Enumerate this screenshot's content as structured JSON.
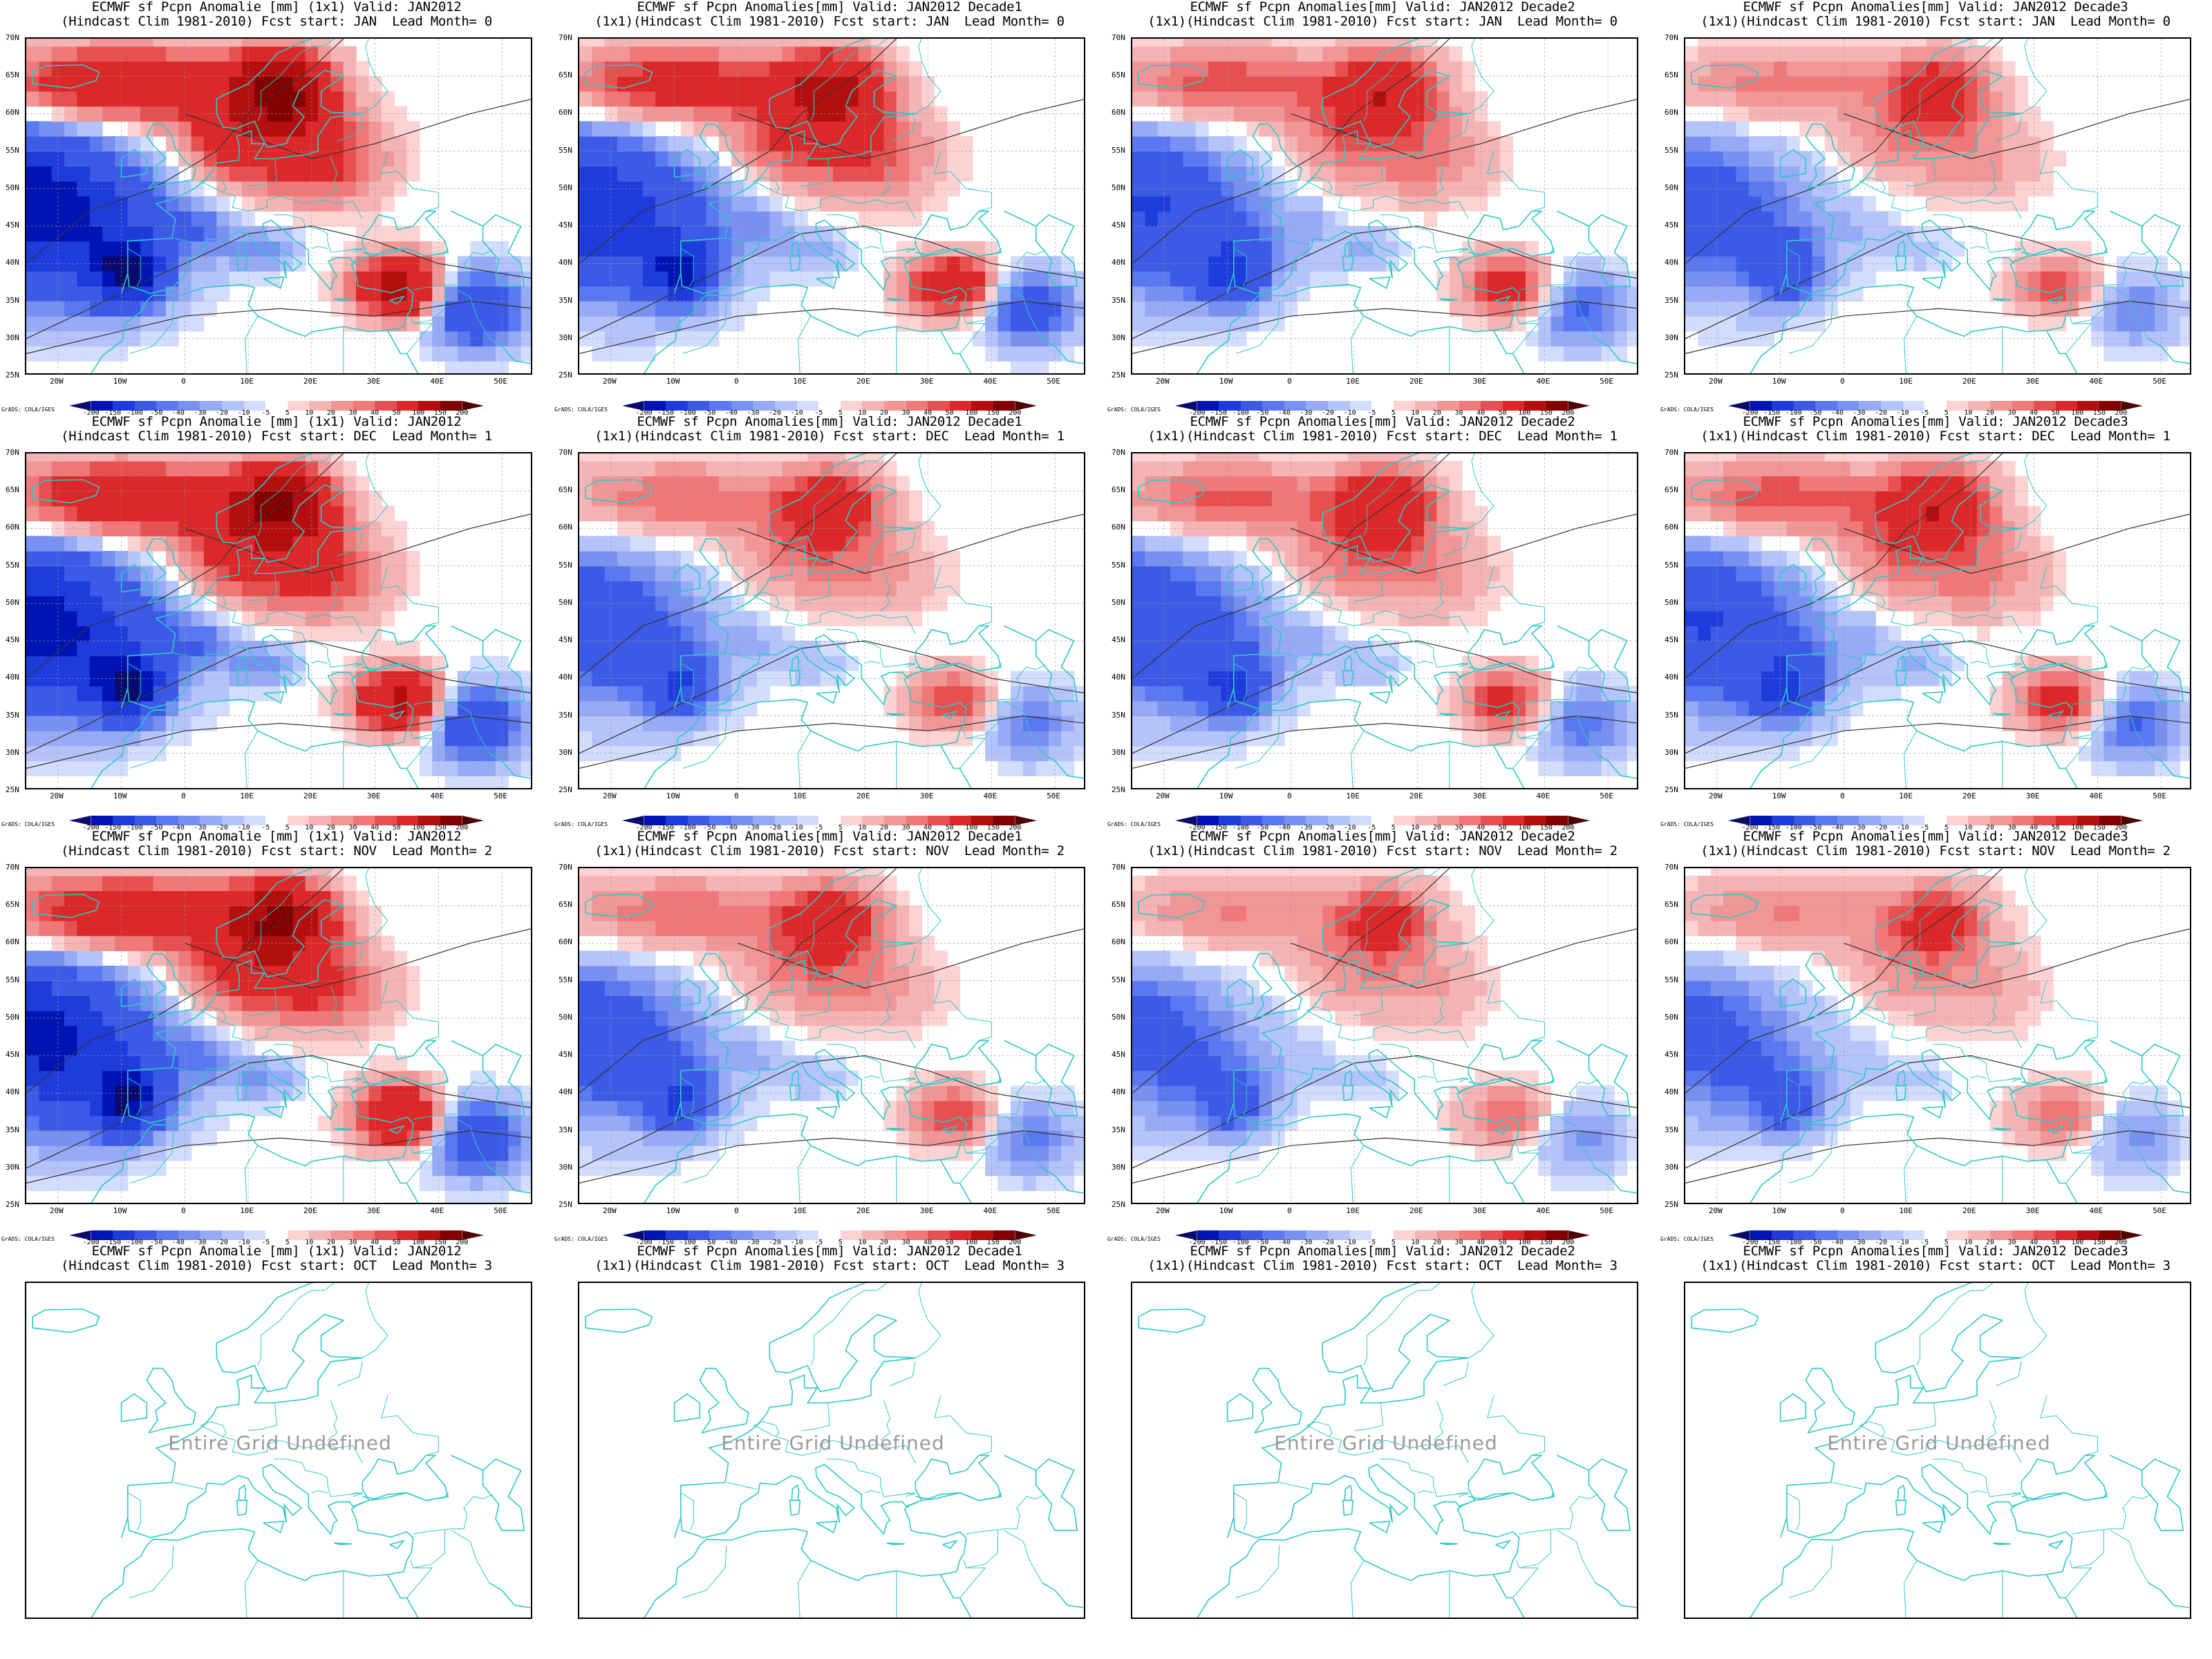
{
  "panels": [
    {
      "title": "ECMWF sf Pcpn Anomalie [mm] (1x1) Valid: JAN2012\n(Hindcast Clim 1981-2010) Fcst start: JAN  Lead Month= 0",
      "defined": true,
      "strength": 1.0
    },
    {
      "title": "ECMWF sf Pcpn Anomalies[mm] Valid: JAN2012 Decade1\n(1x1)(Hindcast Clim 1981-2010) Fcst start: JAN  Lead Month= 0",
      "defined": true,
      "strength": 0.75
    },
    {
      "title": "ECMWF sf Pcpn Anomalies[mm] Valid: JAN2012 Decade2\n(1x1)(Hindcast Clim 1981-2010) Fcst start: JAN  Lead Month= 0",
      "defined": true,
      "strength": 0.55
    },
    {
      "title": "ECMWF sf Pcpn Anomalies[mm] Valid: JAN2012 Decade3\n(1x1)(Hindcast Clim 1981-2010) Fcst start: JAN  Lead Month= 0",
      "defined": true,
      "strength": 0.4
    },
    {
      "title": "ECMWF sf Pcpn Anomalie [mm] (1x1) Valid: JAN2012\n(Hindcast Clim 1981-2010) Fcst start: DEC  Lead Month= 1",
      "defined": true,
      "strength": 0.95
    },
    {
      "title": "ECMWF sf Pcpn Anomalies[mm] Valid: JAN2012 Decade1\n(1x1)(Hindcast Clim 1981-2010) Fcst start: DEC  Lead Month= 1",
      "defined": true,
      "strength": 0.45
    },
    {
      "title": "ECMWF sf Pcpn Anomalies[mm] Valid: JAN2012 Decade2\n(1x1)(Hindcast Clim 1981-2010) Fcst start: DEC  Lead Month= 1",
      "defined": true,
      "strength": 0.5
    },
    {
      "title": "ECMWF sf Pcpn Anomalies[mm] Valid: JAN2012 Decade3\n(1x1)(Hindcast Clim 1981-2010) Fcst start: DEC  Lead Month= 1",
      "defined": true,
      "strength": 0.55
    },
    {
      "title": "ECMWF sf Pcpn Anomalie [mm] (1x1) Valid: JAN2012\n(Hindcast Clim 1981-2010) Fcst start: NOV  Lead Month= 2",
      "defined": true,
      "strength": 0.9
    },
    {
      "title": "ECMWF sf Pcpn Anomalies[mm] Valid: JAN2012 Decade1\n(1x1)(Hindcast Clim 1981-2010) Fcst start: NOV  Lead Month= 2",
      "defined": true,
      "strength": 0.45
    },
    {
      "title": "ECMWF sf Pcpn Anomalies[mm] Valid: JAN2012 Decade2\n(1x1)(Hindcast Clim 1981-2010) Fcst start: NOV  Lead Month= 2",
      "defined": true,
      "strength": 0.35
    },
    {
      "title": "ECMWF sf Pcpn Anomalies[mm] Valid: JAN2012 Decade3\n(1x1)(Hindcast Clim 1981-2010) Fcst start: NOV  Lead Month= 2",
      "defined": true,
      "strength": 0.35
    },
    {
      "title": "ECMWF sf Pcpn Anomalie [mm] (1x1) Valid: JAN2012\n(Hindcast Clim 1981-2010) Fcst start: OCT  Lead Month= 3",
      "defined": false
    },
    {
      "title": "ECMWF sf Pcpn Anomalies[mm] Valid: JAN2012 Decade1\n(1x1)(Hindcast Clim 1981-2010) Fcst start: OCT  Lead Month= 3",
      "defined": false
    },
    {
      "title": "ECMWF sf Pcpn Anomalies[mm] Valid: JAN2012 Decade2\n(1x1)(Hindcast Clim 1981-2010) Fcst start: OCT  Lead Month= 3",
      "defined": false
    },
    {
      "title": "ECMWF sf Pcpn Anomalies[mm] Valid: JAN2012 Decade3\n(1x1)(Hindcast Clim 1981-2010) Fcst start: OCT  Lead Month= 3",
      "defined": false
    }
  ],
  "lat_labels": [
    "70N",
    "65N",
    "60N",
    "55N",
    "50N",
    "45N",
    "40N",
    "35N",
    "30N",
    "25N"
  ],
  "lon_labels": [
    "20W",
    "10W",
    "0",
    "10E",
    "20E",
    "30E",
    "40E",
    "50E"
  ],
  "colorbar": {
    "labels": [
      "-200",
      "-150",
      "-100",
      "-50",
      "-40",
      "-30",
      "-20",
      "-10",
      "-5",
      "5",
      "10",
      "20",
      "30",
      "40",
      "50",
      "100",
      "150",
      "200"
    ],
    "colors": [
      "#0a0a6e",
      "#0014b4",
      "#1e3cdc",
      "#3c5ae6",
      "#5a78f0",
      "#7890f0",
      "#96aaf5",
      "#b4c3fa",
      "#d2dcfc",
      "#ffffff",
      "#fcd2d2",
      "#f5b4b4",
      "#f09696",
      "#f07878",
      "#e65050",
      "#dc2828",
      "#b40f0f",
      "#820000",
      "#500000"
    ],
    "credit": "GrADS: COLA/IGES"
  },
  "undefined_text": "Entire Grid Undefined",
  "colors": {
    "coast": "#2ec8c8",
    "contour": "#333333",
    "grid": "#9a9a9a"
  }
}
